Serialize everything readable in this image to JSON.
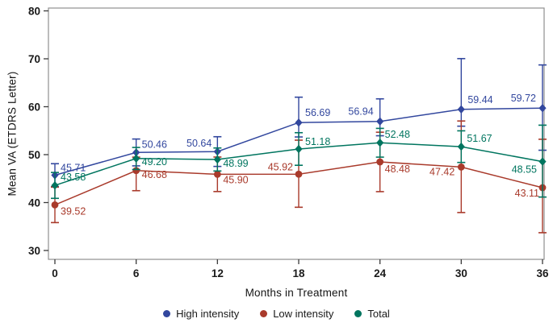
{
  "chart_data": {
    "type": "line",
    "title": "",
    "xlabel": "Months in Treatment",
    "ylabel": "Mean VA (ETDRS Letter)",
    "x": [
      0,
      6,
      12,
      18,
      24,
      30,
      36
    ],
    "x_tick_labels": [
      "0",
      "6",
      "12",
      "18",
      "24",
      "30",
      "36"
    ],
    "y_ticks": [
      30,
      40,
      50,
      60,
      70,
      80
    ],
    "y_tick_labels": [
      "30",
      "40",
      "50",
      "60",
      "70",
      "80"
    ],
    "xlim": [
      -0.5,
      36.1
    ],
    "ylim": [
      28,
      81
    ],
    "grid": false,
    "error_bars": true,
    "legend_position": "bottom-center",
    "frame_color": "#8f8f8f",
    "tick_color": "#3a3a3a",
    "tick_label_color": "#1a1a1a",
    "series": [
      {
        "name": "High intensity",
        "color": "#32479E",
        "marker": "diamond",
        "values": [
          45.71,
          50.46,
          50.64,
          56.69,
          56.94,
          59.44,
          59.72
        ],
        "labels": [
          "45.71",
          "50.46",
          "50.64",
          "56.69",
          "56.94",
          "59.44",
          "59.72"
        ],
        "err_up": [
          2.4,
          2.8,
          3.1,
          5.3,
          4.7,
          10.6,
          9.0
        ],
        "err_down": [
          2.4,
          2.8,
          3.1,
          3.0,
          3.0,
          3.5,
          8.8
        ],
        "label_offsets": [
          [
            7,
            -5,
            "start"
          ],
          [
            7,
            -6,
            "start"
          ],
          [
            -7,
            -6,
            "end"
          ],
          [
            8,
            -8,
            "start"
          ],
          [
            -8,
            -8,
            "end"
          ],
          [
            8,
            -8,
            "start"
          ],
          [
            -8,
            -8,
            "end"
          ]
        ]
      },
      {
        "name": "Low intensity",
        "color": "#A93A2B",
        "marker": "circle",
        "values": [
          39.52,
          46.68,
          45.9,
          45.92,
          48.48,
          47.42,
          43.11
        ],
        "labels": [
          "39.52",
          "46.68",
          "45.90",
          "45.92",
          "48.48",
          "47.42",
          "43.11"
        ],
        "err_up": [
          3.7,
          2.8,
          3.6,
          7.1,
          6.2,
          9.6,
          10.1
        ],
        "err_down": [
          3.7,
          4.2,
          3.6,
          6.9,
          6.2,
          9.5,
          9.4
        ],
        "label_offsets": [
          [
            7,
            12,
            "start"
          ],
          [
            7,
            9,
            "start"
          ],
          [
            7,
            11,
            "start"
          ],
          [
            -7,
            -5,
            "end"
          ],
          [
            6,
            13,
            "start"
          ],
          [
            -8,
            10,
            "end"
          ],
          [
            -4,
            11,
            "end"
          ]
        ]
      },
      {
        "name": "Total",
        "color": "#00755F",
        "marker": "diamond",
        "values": [
          43.58,
          49.2,
          48.99,
          51.18,
          52.48,
          51.67,
          48.55
        ],
        "labels": [
          "43.58",
          "49.20",
          "48.99",
          "51.18",
          "52.48",
          "51.67",
          "48.55"
        ],
        "err_up": [
          2.7,
          2.3,
          2.4,
          3.4,
          3.0,
          3.3,
          7.6
        ],
        "err_down": [
          2.7,
          2.3,
          2.4,
          3.4,
          3.0,
          3.3,
          7.4
        ],
        "label_offsets": [
          [
            7,
            -6,
            "start"
          ],
          [
            7,
            8,
            "start"
          ],
          [
            7,
            9,
            "start"
          ],
          [
            8,
            -5,
            "start"
          ],
          [
            6,
            -6,
            "start"
          ],
          [
            7,
            -6,
            "start"
          ],
          [
            -7,
            14,
            "end"
          ]
        ]
      }
    ]
  }
}
